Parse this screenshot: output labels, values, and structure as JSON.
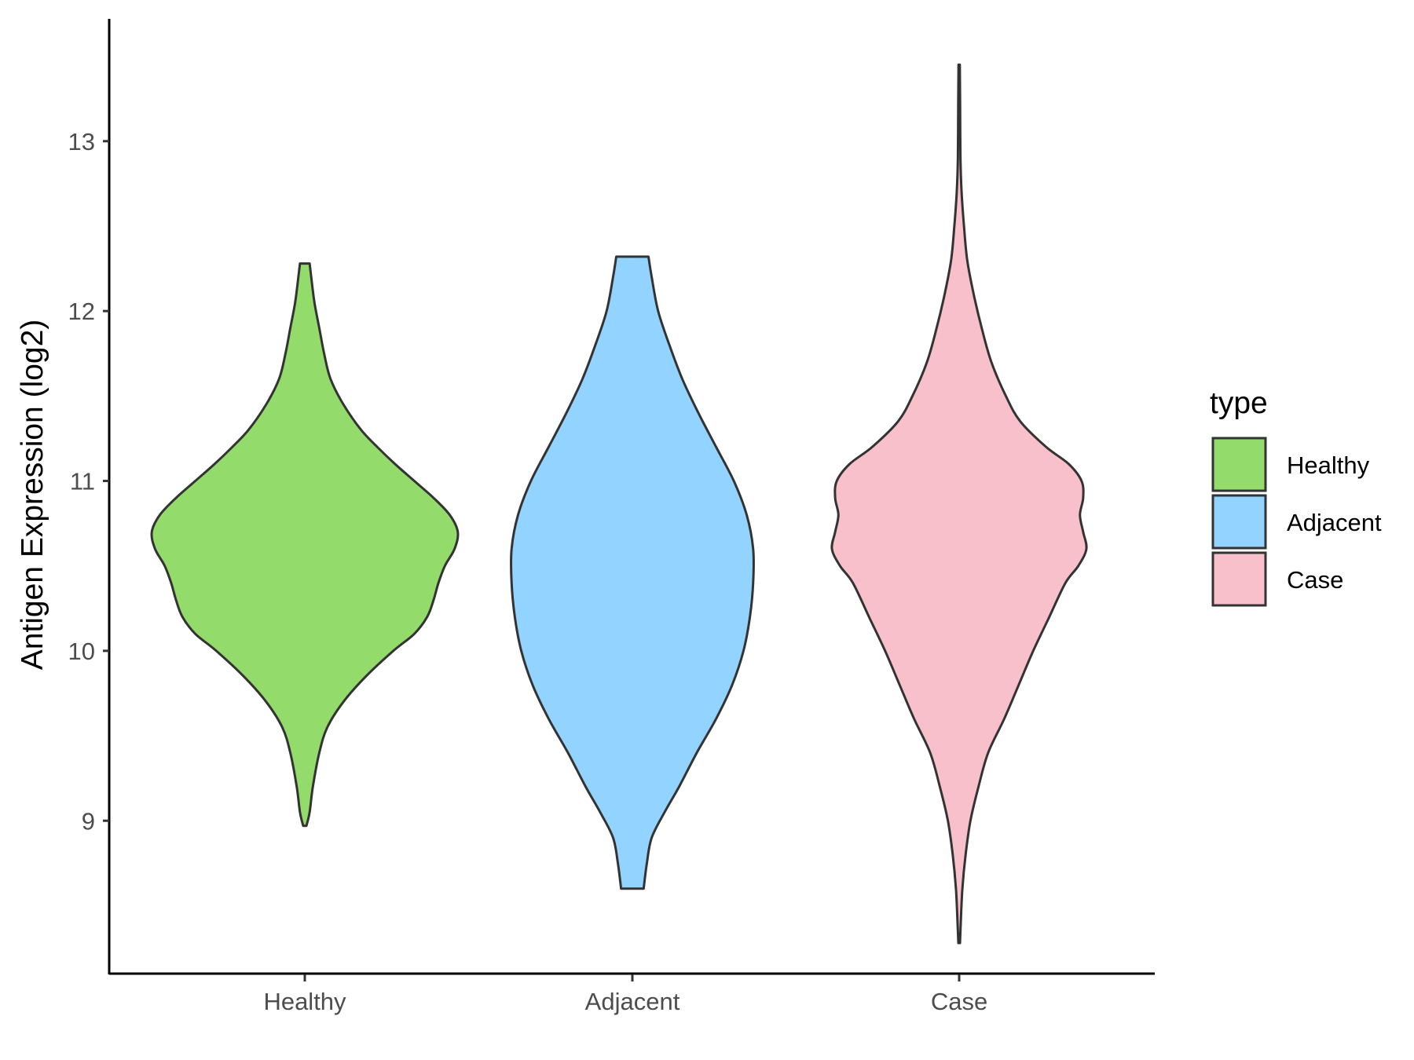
{
  "chart_data": {
    "type": "violin",
    "title": "",
    "xlabel": "",
    "ylabel": "Antigen Expression (log2)",
    "categories": [
      "Healthy",
      "Adjacent",
      "Case"
    ],
    "yticks": [
      9,
      10,
      11,
      12,
      13
    ],
    "ylim": [
      8.1,
      13.72
    ],
    "grid": false,
    "legend": {
      "title": "type",
      "placement": "right",
      "entries": [
        "Healthy",
        "Adjacent",
        "Case"
      ]
    },
    "series": [
      {
        "name": "Healthy",
        "color": "#93DB6A",
        "range": [
          8.97,
          12.28
        ],
        "profile": [
          [
            8.97,
            0.01
          ],
          [
            9.05,
            0.03
          ],
          [
            9.2,
            0.05
          ],
          [
            9.4,
            0.09
          ],
          [
            9.55,
            0.14
          ],
          [
            9.7,
            0.24
          ],
          [
            9.85,
            0.38
          ],
          [
            10.0,
            0.55
          ],
          [
            10.1,
            0.68
          ],
          [
            10.2,
            0.76
          ],
          [
            10.3,
            0.8
          ],
          [
            10.4,
            0.83
          ],
          [
            10.5,
            0.87
          ],
          [
            10.6,
            0.93
          ],
          [
            10.7,
            0.95
          ],
          [
            10.8,
            0.9
          ],
          [
            10.9,
            0.8
          ],
          [
            11.0,
            0.68
          ],
          [
            11.1,
            0.56
          ],
          [
            11.2,
            0.45
          ],
          [
            11.3,
            0.35
          ],
          [
            11.45,
            0.24
          ],
          [
            11.6,
            0.16
          ],
          [
            11.75,
            0.12
          ],
          [
            11.9,
            0.09
          ],
          [
            12.05,
            0.06
          ],
          [
            12.2,
            0.04
          ],
          [
            12.28,
            0.03
          ]
        ]
      },
      {
        "name": "Adjacent",
        "color": "#93D3FF",
        "range": [
          8.6,
          12.32
        ],
        "profile": [
          [
            8.6,
            0.07
          ],
          [
            8.75,
            0.09
          ],
          [
            8.9,
            0.12
          ],
          [
            9.05,
            0.2
          ],
          [
            9.2,
            0.29
          ],
          [
            9.4,
            0.4
          ],
          [
            9.6,
            0.52
          ],
          [
            9.8,
            0.62
          ],
          [
            10.0,
            0.69
          ],
          [
            10.2,
            0.73
          ],
          [
            10.4,
            0.75
          ],
          [
            10.6,
            0.75
          ],
          [
            10.8,
            0.71
          ],
          [
            11.0,
            0.63
          ],
          [
            11.2,
            0.52
          ],
          [
            11.4,
            0.41
          ],
          [
            11.6,
            0.31
          ],
          [
            11.8,
            0.23
          ],
          [
            12.0,
            0.16
          ],
          [
            12.2,
            0.12
          ],
          [
            12.32,
            0.1
          ]
        ]
      },
      {
        "name": "Case",
        "color": "#F8C0CB",
        "range": [
          8.28,
          13.45
        ],
        "profile": [
          [
            8.28,
            0.005
          ],
          [
            8.4,
            0.01
          ],
          [
            8.6,
            0.02
          ],
          [
            8.8,
            0.04
          ],
          [
            9.0,
            0.07
          ],
          [
            9.2,
            0.12
          ],
          [
            9.4,
            0.18
          ],
          [
            9.6,
            0.28
          ],
          [
            9.8,
            0.37
          ],
          [
            10.0,
            0.46
          ],
          [
            10.2,
            0.56
          ],
          [
            10.4,
            0.66
          ],
          [
            10.5,
            0.74
          ],
          [
            10.6,
            0.79
          ],
          [
            10.7,
            0.77
          ],
          [
            10.8,
            0.75
          ],
          [
            10.9,
            0.77
          ],
          [
            11.0,
            0.76
          ],
          [
            11.1,
            0.68
          ],
          [
            11.2,
            0.54
          ],
          [
            11.35,
            0.38
          ],
          [
            11.5,
            0.29
          ],
          [
            11.7,
            0.2
          ],
          [
            11.9,
            0.14
          ],
          [
            12.1,
            0.09
          ],
          [
            12.3,
            0.05
          ],
          [
            12.5,
            0.03
          ],
          [
            12.7,
            0.015
          ],
          [
            12.9,
            0.008
          ],
          [
            13.2,
            0.006
          ],
          [
            13.45,
            0.004
          ]
        ]
      }
    ]
  }
}
